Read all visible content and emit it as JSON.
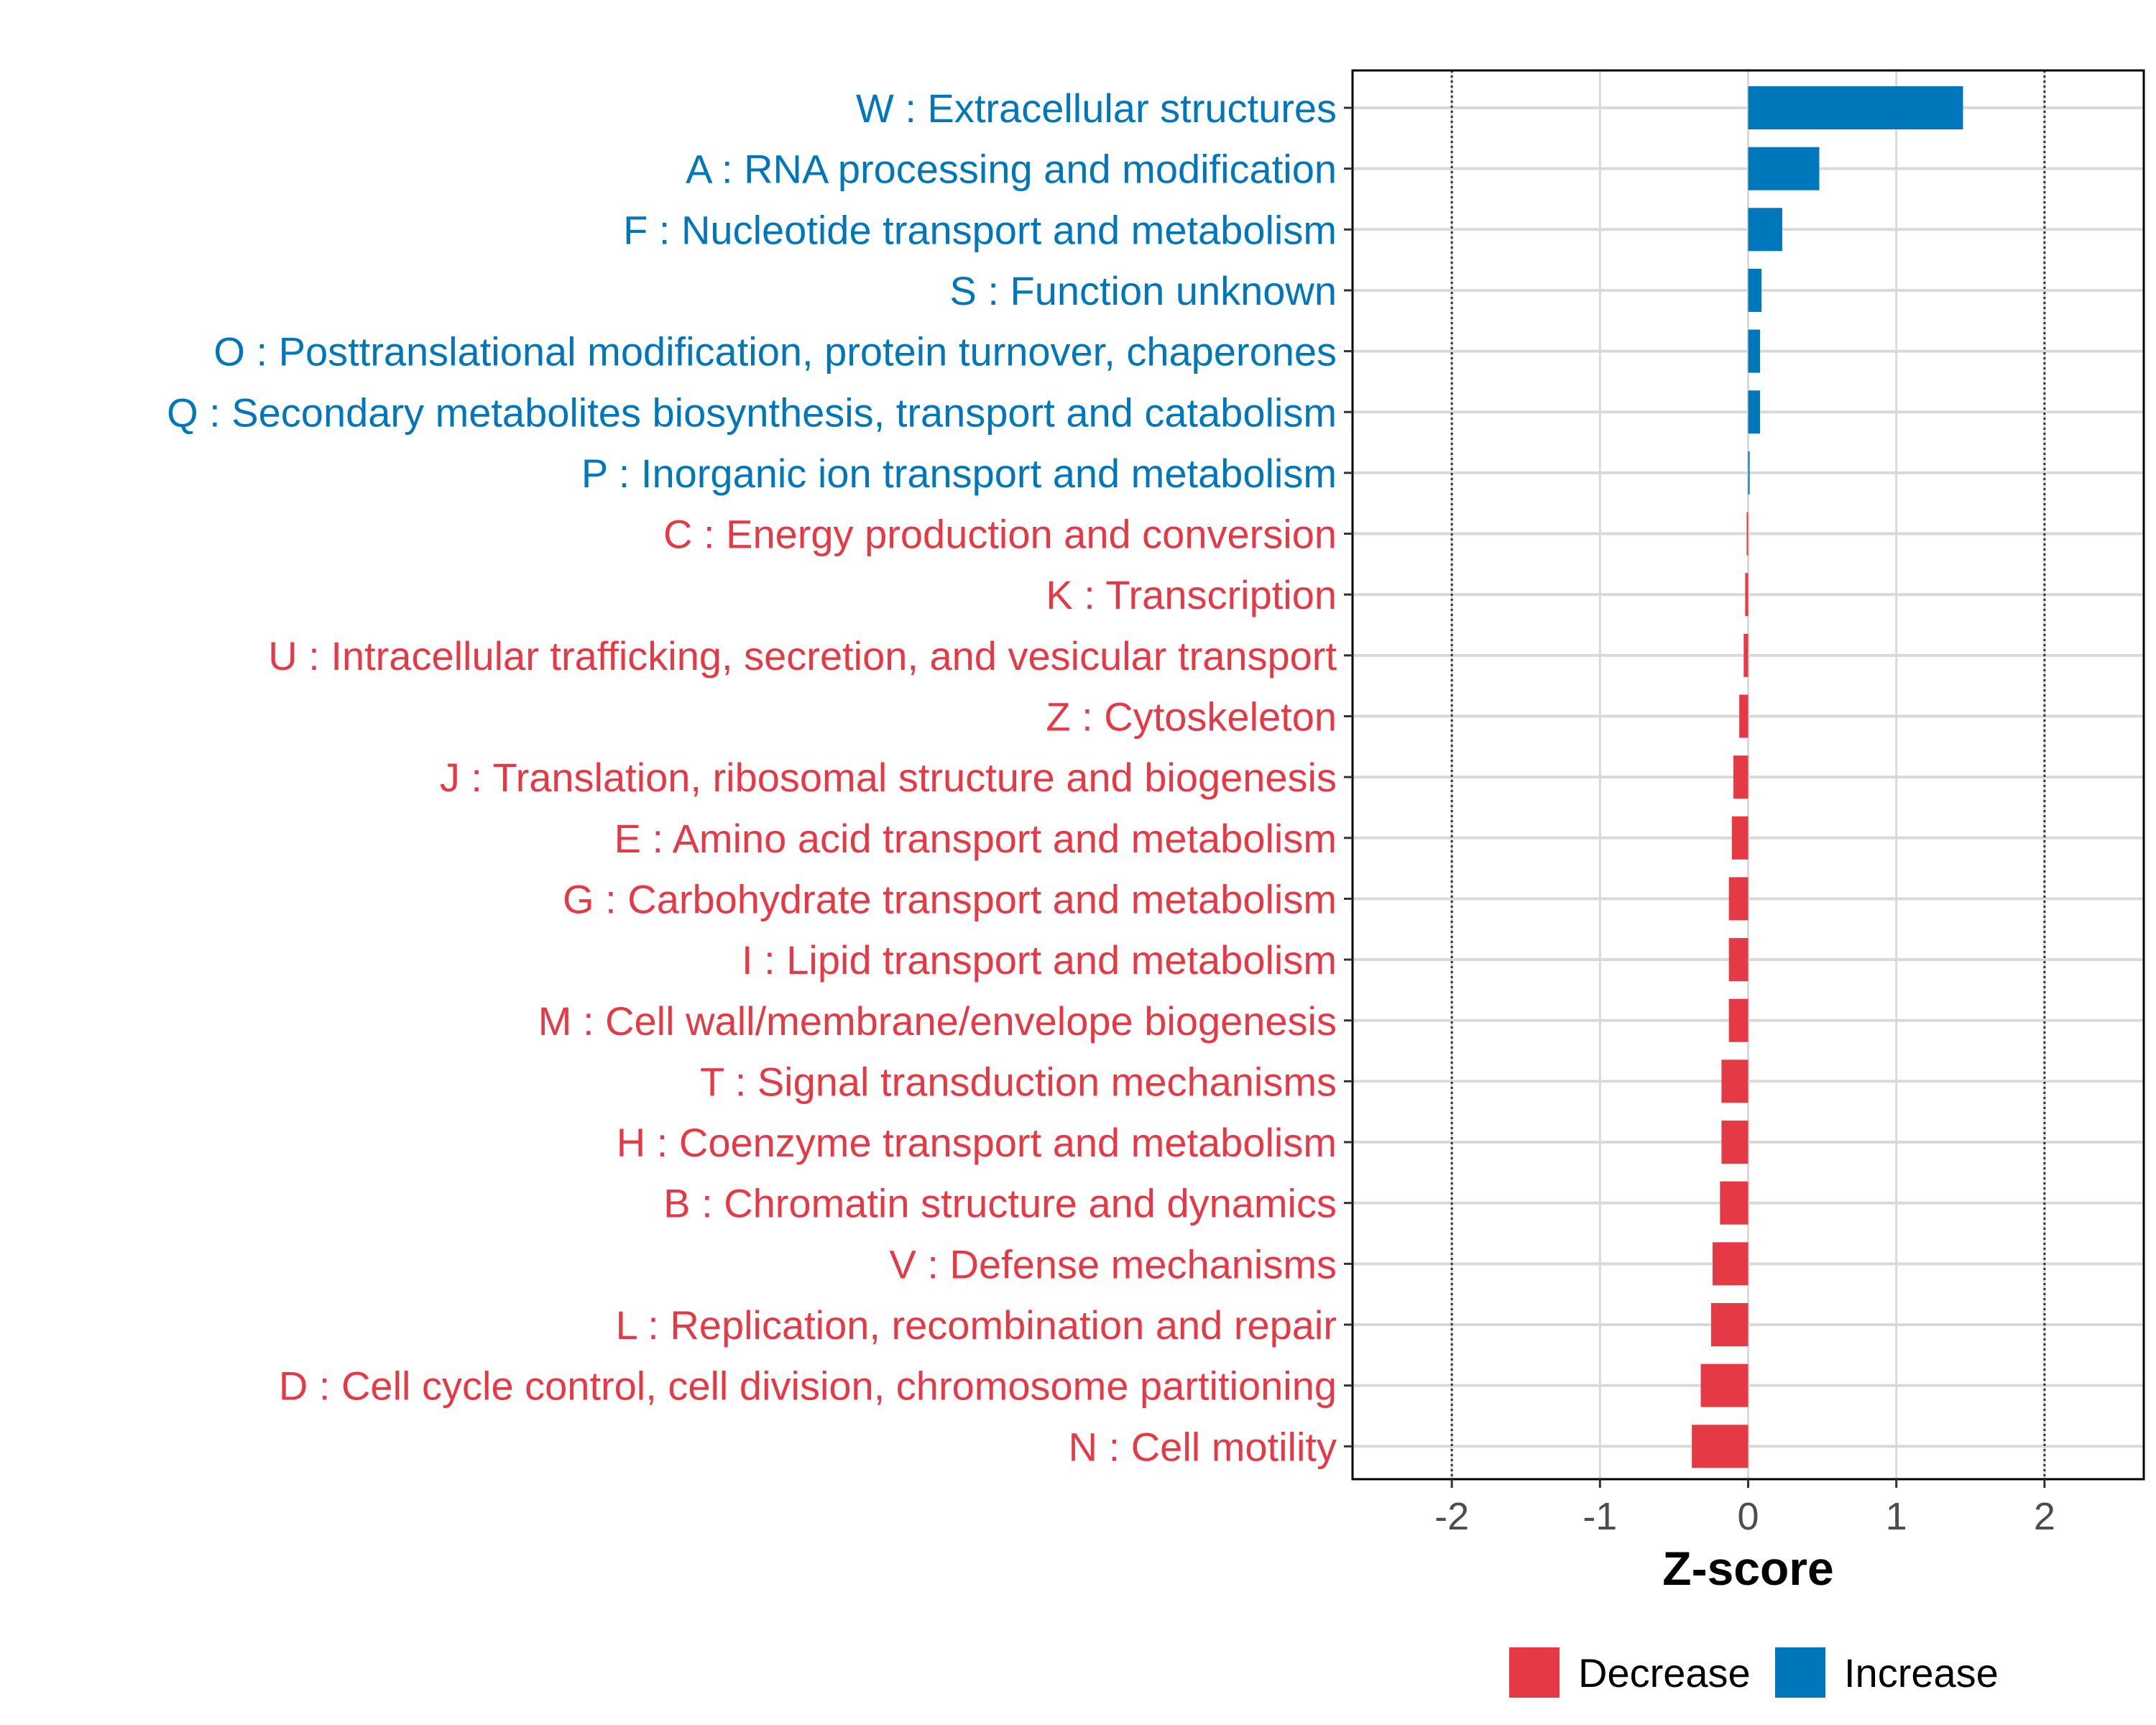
{
  "chart_data": {
    "type": "bar",
    "orientation": "horizontal",
    "title": "",
    "xlabel": "Z-score",
    "ylabel": "",
    "xlim": [
      -2.67,
      2.67
    ],
    "xticks": [
      -2,
      -1,
      0,
      1,
      2
    ],
    "xtick_labels": [
      "-2",
      "-1",
      "0",
      "1",
      "2"
    ],
    "reference_lines": [
      -2,
      2
    ],
    "grid": true,
    "legend_position": "bottom",
    "colors": {
      "Decrease": "#e63946",
      "Increase": "#0077bb"
    },
    "categories": [
      "W : Extracellular structures",
      "A : RNA processing and modification",
      "F : Nucleotide transport and metabolism",
      "S : Function unknown",
      "O : Posttranslational modification, protein turnover, chaperones",
      "Q : Secondary metabolites biosynthesis, transport and catabolism",
      "P : Inorganic ion transport and metabolism",
      "C : Energy production and conversion",
      "K : Transcription",
      "U : Intracellular trafficking, secretion, and vesicular transport",
      "Z : Cytoskeleton",
      "J : Translation, ribosomal structure and biogenesis",
      "E : Amino acid transport and metabolism",
      "G : Carbohydrate transport and metabolism",
      "I : Lipid transport and metabolism",
      "M : Cell wall/membrane/envelope biogenesis",
      "T : Signal transduction mechanisms",
      "H : Coenzyme transport and metabolism",
      "B : Chromatin structure and dynamics",
      "V : Defense mechanisms",
      "L : Replication, recombination and repair",
      "D : Cell cycle control, cell division, chromosome partitioning",
      "N : Cell motility"
    ],
    "values": [
      1.45,
      0.48,
      0.23,
      0.09,
      0.08,
      0.08,
      0.01,
      -0.01,
      -0.02,
      -0.03,
      -0.06,
      -0.1,
      -0.11,
      -0.13,
      -0.13,
      -0.13,
      -0.18,
      -0.18,
      -0.19,
      -0.24,
      -0.25,
      -0.32,
      -0.38
    ],
    "groups": [
      "Increase",
      "Increase",
      "Increase",
      "Increase",
      "Increase",
      "Increase",
      "Increase",
      "Decrease",
      "Decrease",
      "Decrease",
      "Decrease",
      "Decrease",
      "Decrease",
      "Decrease",
      "Decrease",
      "Decrease",
      "Decrease",
      "Decrease",
      "Decrease",
      "Decrease",
      "Decrease",
      "Decrease",
      "Decrease"
    ],
    "legend": [
      "Decrease",
      "Increase"
    ]
  }
}
